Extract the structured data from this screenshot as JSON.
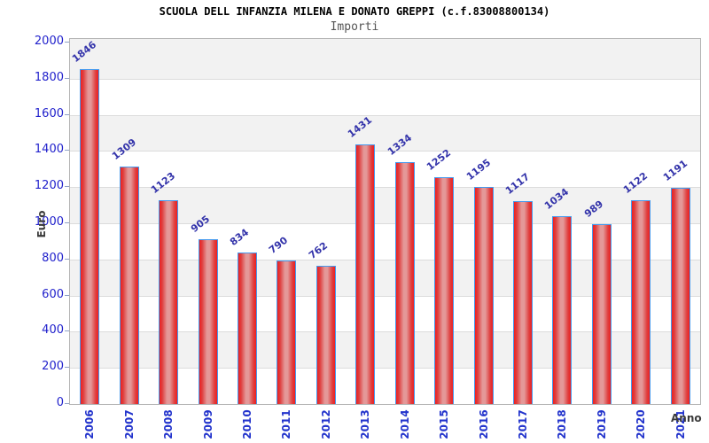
{
  "chart_data": {
    "type": "bar",
    "title": "SCUOLA DELL INFANZIA MILENA E DONATO GREPPI (c.f.83008800134)",
    "subtitle": "Importi",
    "xlabel": "Anno",
    "ylabel": "Euro",
    "categories": [
      "2006",
      "2007",
      "2008",
      "2009",
      "2010",
      "2011",
      "2012",
      "2013",
      "2014",
      "2015",
      "2016",
      "2017",
      "2018",
      "2019",
      "2020",
      "2021"
    ],
    "values": [
      1846,
      1309,
      1123,
      905,
      834,
      790,
      762,
      1431,
      1334,
      1252,
      1195,
      1117,
      1034,
      989,
      1122,
      1191
    ],
    "ylim": [
      0,
      2000
    ],
    "ytick_step": 200,
    "yticks": [
      0,
      200,
      400,
      600,
      800,
      1000,
      1200,
      1400,
      1600,
      1800,
      2000
    ],
    "grid": "on",
    "legend": "none",
    "colors": {
      "bar_fill": "#ee2020",
      "bar_fill_highlight": "#e49898",
      "bar_border": "#4499ee",
      "value_label": "#3333aa",
      "axis_tick_text": "#2222cc",
      "year_text": "#2233cc",
      "axis_name_text": "#3a3a3a",
      "band_gray": "#f2f2f2",
      "grid_line": "#dcdcdc",
      "plot_border": "#b4b4b4",
      "subtitle_text": "#555555",
      "title_text": "#000000"
    }
  }
}
